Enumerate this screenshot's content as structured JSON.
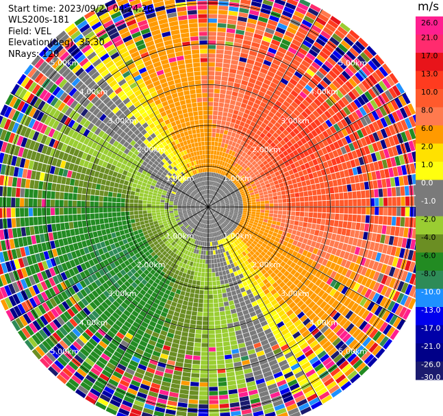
{
  "header": {
    "start_time": "Start time: 2023/09/21 04:24:26",
    "instrument": "WLS200s-181",
    "field": "Field: VEL",
    "elevation": "Elevation(deg): 35.30",
    "nrays": "NRays: 120"
  },
  "colorbar": {
    "units": "m/s",
    "ticks": [
      "26.0",
      "21.0",
      "17.0",
      "13.0",
      "10.0",
      "8.0",
      "6.0",
      "2.0",
      "1.0",
      "0.0",
      "-1.0",
      "-2.0",
      "-4.0",
      "-6.0",
      "-8.0",
      "-10.0",
      "-13.0",
      "-17.0",
      "-21.0",
      "-26.0",
      "-30.0"
    ],
    "colors": [
      "#ff1f8f",
      "#ff2b6e",
      "#e8141a",
      "#ff3b1f",
      "#ff5a2c",
      "#ff7a4e",
      "#ff9a00",
      "#ffe100",
      "#ffff0f",
      "#7a7a7a",
      "#7a7a7a",
      "#9acd32",
      "#6b8e23",
      "#228b22",
      "#2e8b57",
      "#1e90ff",
      "#0000ee",
      "#0000a8",
      "#000088",
      "#1a1a6e"
    ]
  },
  "chart_data": {
    "type": "heatmap",
    "field": "VEL",
    "units": "m/s",
    "n_rays": 120,
    "elevation_deg": 35.3,
    "range_rings_km": [
      1.0,
      2.0,
      3.0,
      4.0,
      5.0
    ],
    "ring_labels": [
      "1.00km",
      "2.00km",
      "3.00km",
      "4.00km",
      "5.00km"
    ],
    "colorscale_min": -30.0,
    "colorscale_max": 26.0
  }
}
